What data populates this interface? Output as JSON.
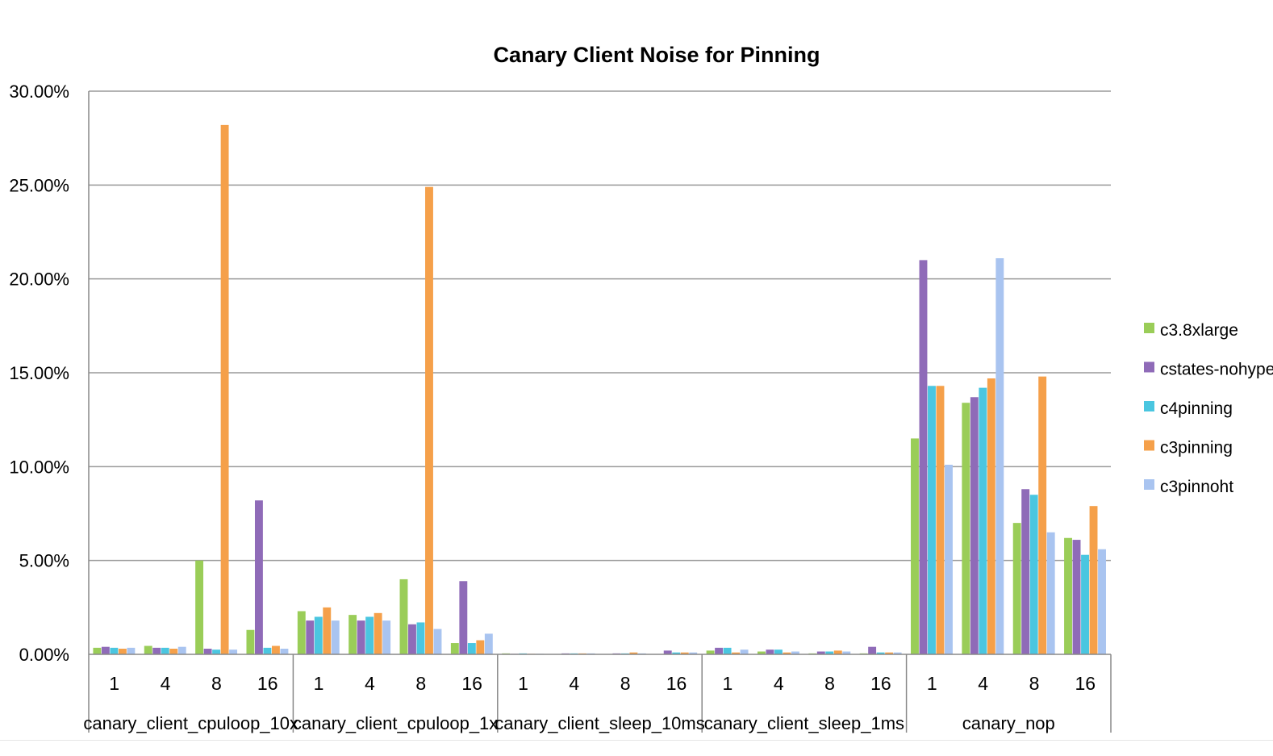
{
  "chart_data": {
    "type": "bar",
    "title": "Canary Client Noise for Pinning",
    "xlabel": "",
    "ylabel": "",
    "ylim": [
      0,
      30
    ],
    "y_ticks": [
      "0.00%",
      "5.00%",
      "10.00%",
      "15.00%",
      "20.00%",
      "25.00%",
      "30.00%"
    ],
    "grid": true,
    "legend_position": "right",
    "groups": [
      {
        "name": "canary_client_cpuloop_10x",
        "categories": [
          "1",
          "4",
          "8",
          "16"
        ]
      },
      {
        "name": "canary_client_cpuloop_1x",
        "categories": [
          "1",
          "4",
          "8",
          "16"
        ]
      },
      {
        "name": "canary_client_sleep_10ms",
        "categories": [
          "1",
          "4",
          "8",
          "16"
        ]
      },
      {
        "name": "canary_client_sleep_1ms",
        "categories": [
          "1",
          "4",
          "8",
          "16"
        ]
      },
      {
        "name": "canary_nop",
        "categories": [
          "1",
          "4",
          "8",
          "16"
        ]
      }
    ],
    "series": [
      {
        "name": "c3.8xlarge",
        "color": "#9acd58",
        "values": [
          0.35,
          0.45,
          5.0,
          1.3,
          2.3,
          2.1,
          4.0,
          0.6,
          0.05,
          0.02,
          0.02,
          0.02,
          0.2,
          0.15,
          0.05,
          0.05,
          11.5,
          13.4,
          7.0,
          6.2
        ]
      },
      {
        "name": "cstates-nohyper",
        "color": "#8f6bb8",
        "values": [
          0.4,
          0.35,
          0.3,
          8.2,
          1.8,
          1.8,
          1.6,
          3.9,
          0.03,
          0.05,
          0.05,
          0.2,
          0.35,
          0.25,
          0.15,
          0.4,
          21.0,
          13.7,
          8.8,
          6.1
        ]
      },
      {
        "name": "c4pinning",
        "color": "#4ac6e0",
        "values": [
          0.35,
          0.35,
          0.25,
          0.35,
          2.0,
          2.0,
          1.7,
          0.6,
          0.05,
          0.05,
          0.05,
          0.1,
          0.35,
          0.25,
          0.15,
          0.1,
          14.3,
          14.2,
          8.5,
          5.3
        ]
      },
      {
        "name": "c3pinning",
        "color": "#f5a04a",
        "values": [
          0.3,
          0.3,
          28.2,
          0.45,
          2.5,
          2.2,
          24.9,
          0.75,
          0.03,
          0.05,
          0.1,
          0.1,
          0.1,
          0.1,
          0.2,
          0.1,
          14.3,
          14.7,
          14.8,
          7.9
        ]
      },
      {
        "name": "c3pinnoht",
        "color": "#a9c4f0",
        "values": [
          0.35,
          0.4,
          0.25,
          0.3,
          1.8,
          1.8,
          1.35,
          1.1,
          0.03,
          0.05,
          0.05,
          0.1,
          0.25,
          0.15,
          0.15,
          0.1,
          10.1,
          21.1,
          6.5,
          5.6
        ]
      }
    ]
  }
}
